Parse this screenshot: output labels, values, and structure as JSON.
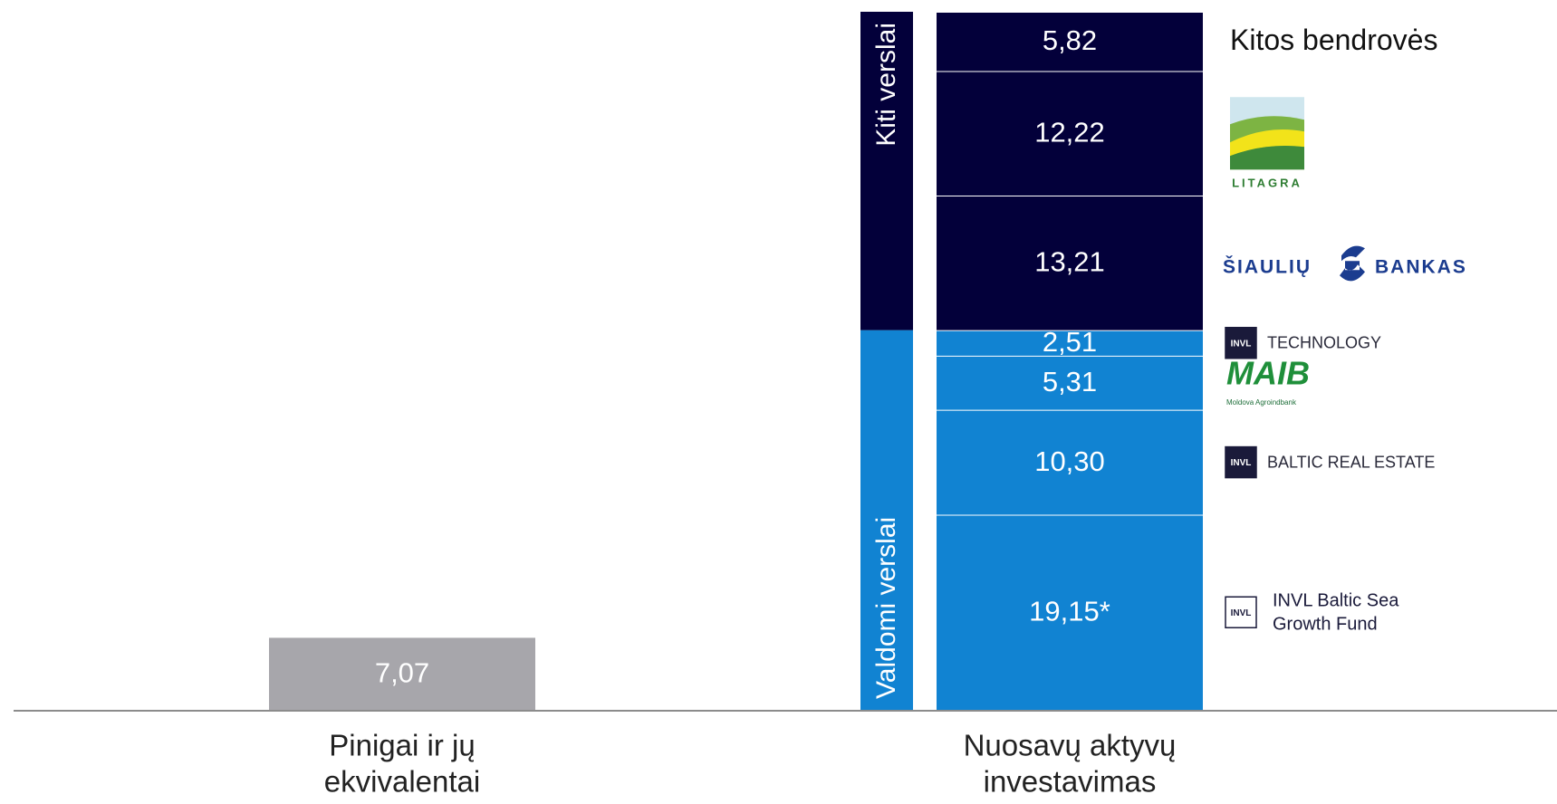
{
  "chart_data": {
    "type": "stacked-bar",
    "categories": [
      [
        "Pinigai ir jų",
        "ekvivalentai"
      ],
      [
        "Nuosavų aktyvų",
        "investavimas"
      ]
    ],
    "groups": [
      {
        "label": "Valdomi verslai",
        "color": "#1183d2"
      },
      {
        "label": "Kiti verslai",
        "color": "#03003a"
      }
    ],
    "series": [
      {
        "name": null,
        "color": "#a7a6ab",
        "values": [
          7.07,
          null
        ],
        "value_labels": [
          "7,07",
          null
        ]
      },
      {
        "name": "INVL Baltic Sea Growth Fund",
        "logo": "INVL",
        "group": 0,
        "color": "#1183d2",
        "values": [
          null,
          19.15
        ],
        "value_labels": [
          null,
          "19,15*"
        ]
      },
      {
        "name": "BALTIC REAL ESTATE",
        "logo": "INVL",
        "group": 0,
        "color": "#1183d2",
        "values": [
          null,
          10.3
        ],
        "value_labels": [
          null,
          "10,30"
        ]
      },
      {
        "name": "MAIB",
        "sub": "Moldova Agroindbank",
        "group": 0,
        "color": "#1183d2",
        "values": [
          null,
          5.31
        ],
        "value_labels": [
          null,
          "5,31"
        ]
      },
      {
        "name": "TECHNOLOGY",
        "logo": "INVL",
        "group": 0,
        "color": "#1183d2",
        "values": [
          null,
          2.51
        ],
        "value_labels": [
          null,
          "2,51"
        ]
      },
      {
        "name": "ŠIAULIŲ BANKAS",
        "group": 1,
        "color": "#03003a",
        "values": [
          null,
          13.21
        ],
        "value_labels": [
          null,
          "13,21"
        ]
      },
      {
        "name": "LITAGRA",
        "group": 1,
        "color": "#03003a",
        "values": [
          null,
          12.22
        ],
        "value_labels": [
          null,
          "12,22"
        ]
      },
      {
        "name": "Kitos bendrovės",
        "group": 1,
        "color": "#03003a",
        "values": [
          null,
          5.82
        ],
        "value_labels": [
          null,
          "5,82"
        ]
      }
    ]
  }
}
